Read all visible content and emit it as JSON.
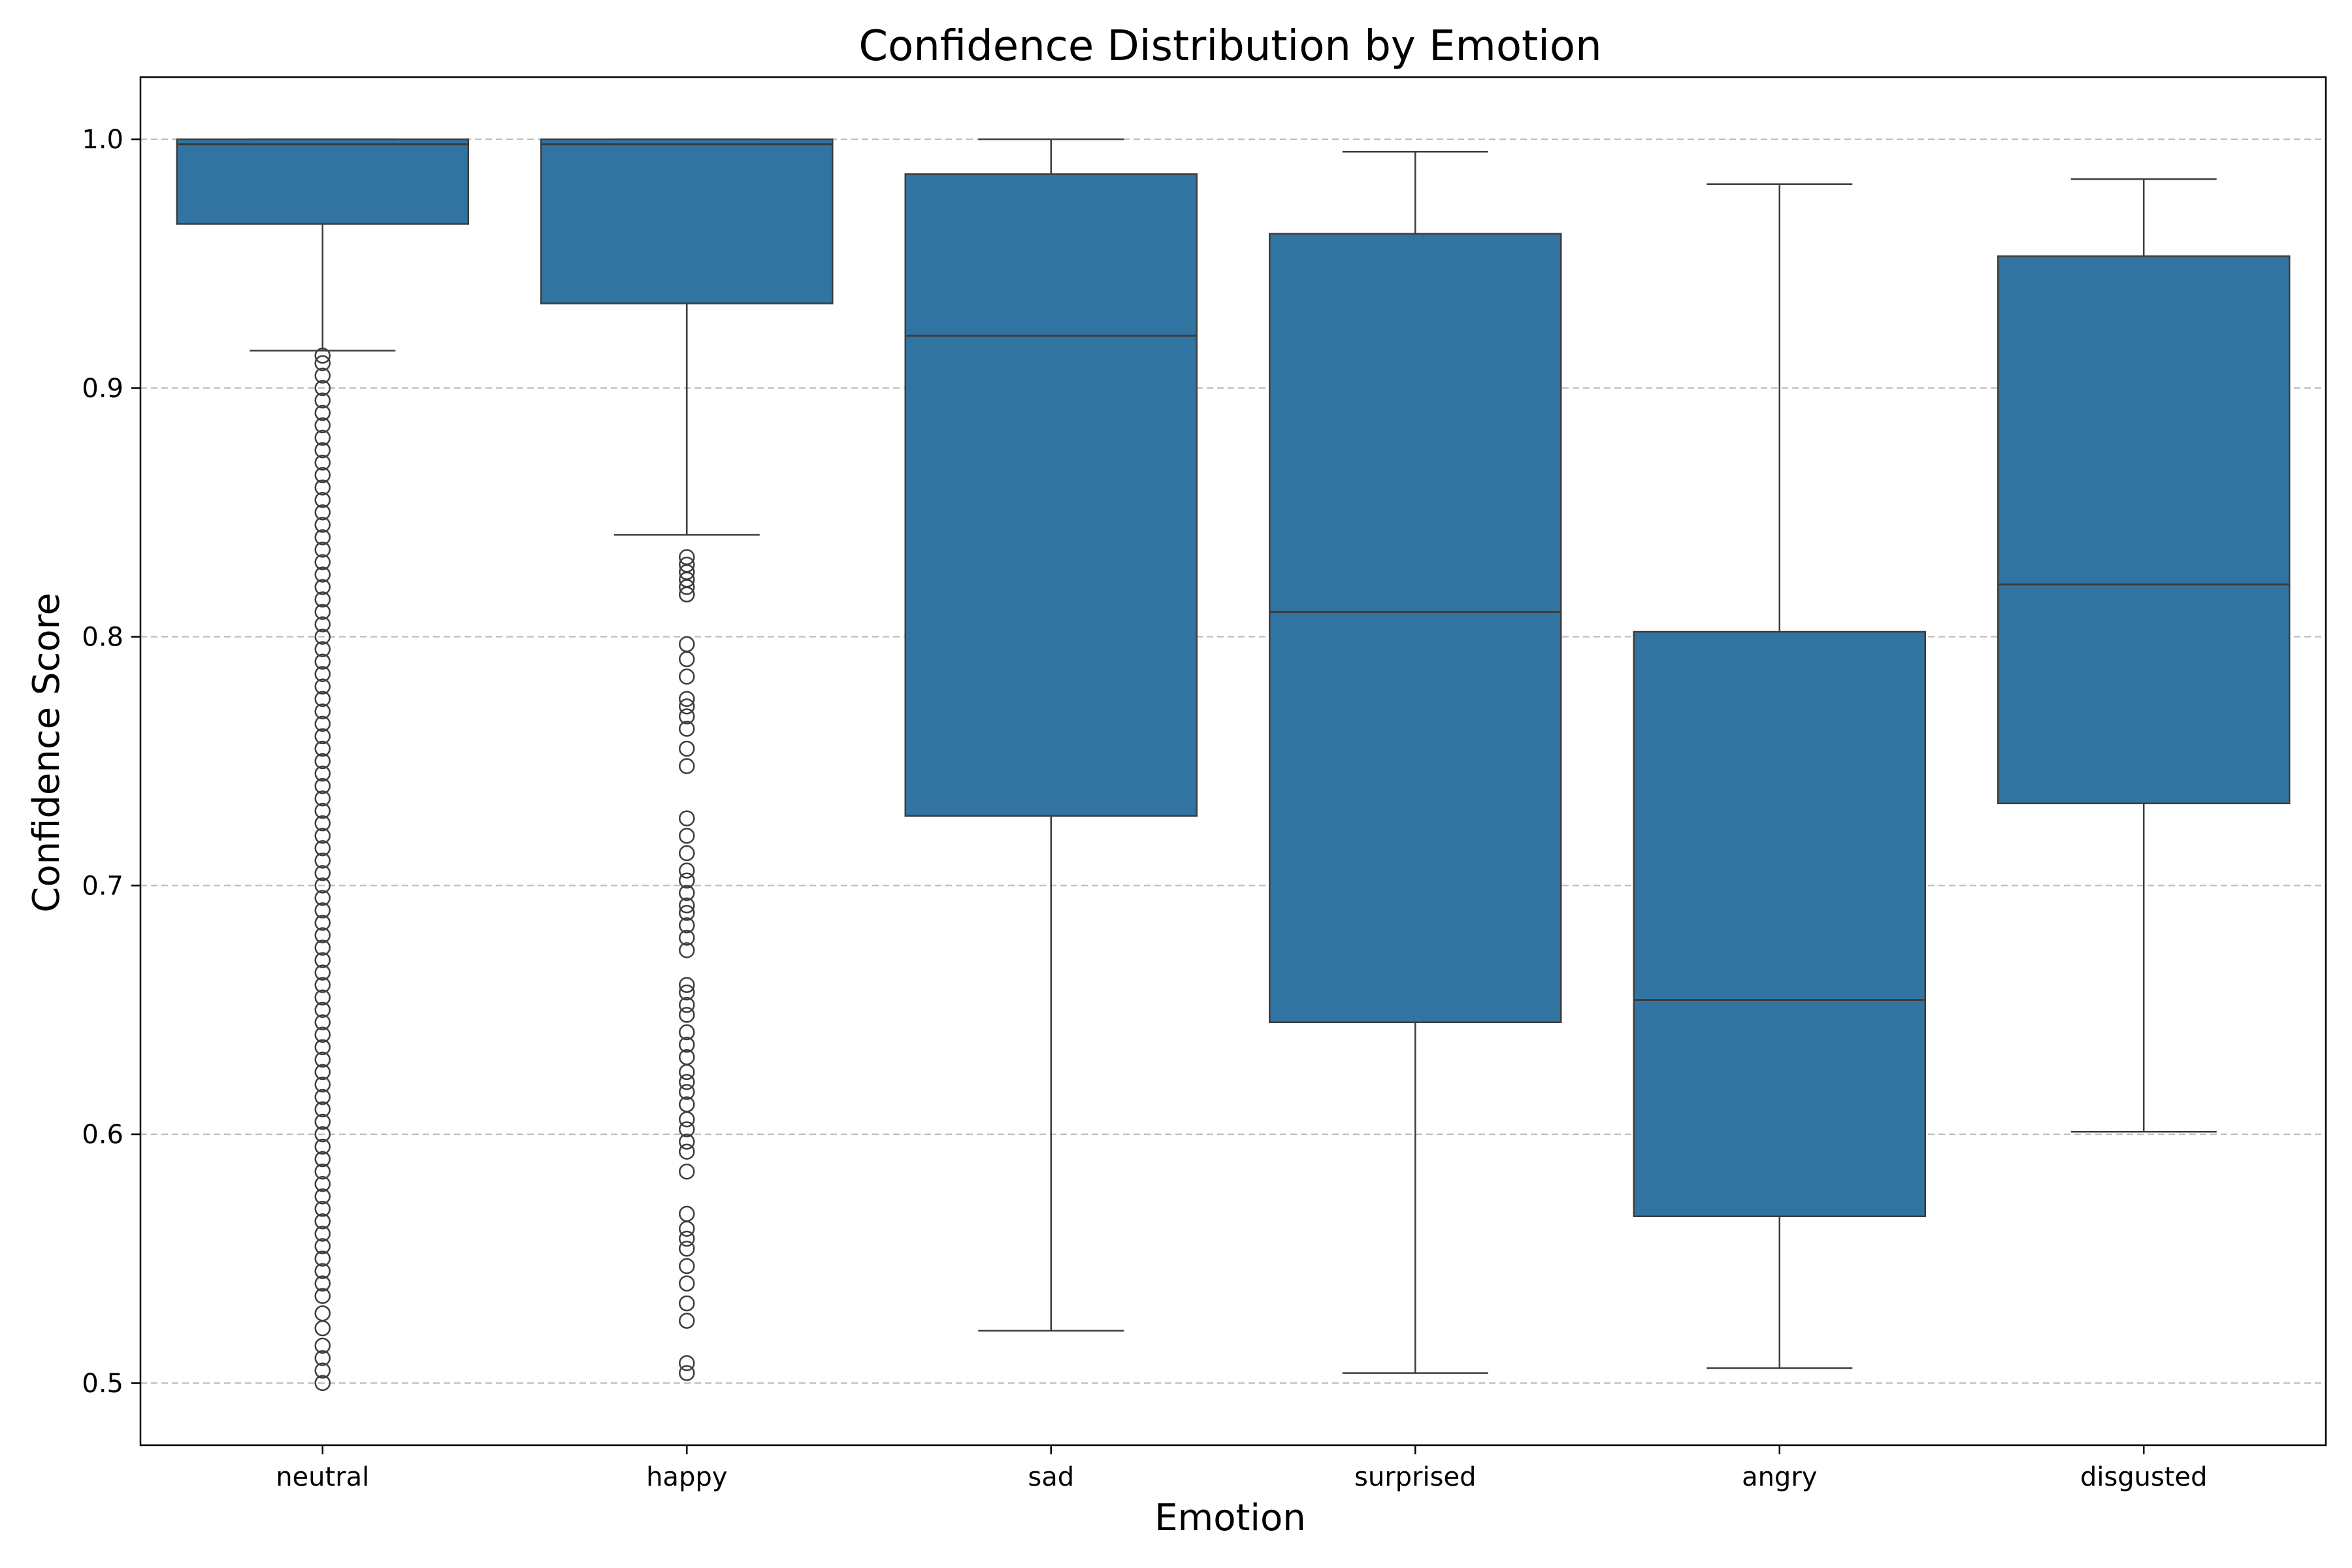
{
  "chart_data": {
    "type": "box",
    "title": "Confidence Distribution by Emotion",
    "xlabel": "Emotion",
    "ylabel": "Confidence Score",
    "ylim": [
      0.475,
      1.025
    ],
    "yticks": [
      "0.5",
      "0.6",
      "0.7",
      "0.8",
      "0.9",
      "1.0"
    ],
    "grid": "y-dashed",
    "colors": {
      "box": "#3274a1",
      "line": "#3d3d3d",
      "grid": "#bbbbbb"
    },
    "categories": [
      "neutral",
      "happy",
      "sad",
      "surprised",
      "angry",
      "disgusted"
    ],
    "boxes": [
      {
        "category": "neutral",
        "whisker_low": 0.915,
        "q1": 0.966,
        "median": 0.998,
        "q3": 1.0,
        "whisker_high": 1.0,
        "outliers": [
          0.913,
          0.91,
          0.905,
          0.9,
          0.895,
          0.89,
          0.885,
          0.88,
          0.875,
          0.87,
          0.865,
          0.86,
          0.855,
          0.85,
          0.845,
          0.84,
          0.835,
          0.83,
          0.825,
          0.82,
          0.815,
          0.81,
          0.805,
          0.8,
          0.795,
          0.79,
          0.785,
          0.78,
          0.775,
          0.77,
          0.765,
          0.76,
          0.755,
          0.75,
          0.745,
          0.74,
          0.735,
          0.73,
          0.725,
          0.72,
          0.715,
          0.71,
          0.705,
          0.7,
          0.695,
          0.69,
          0.685,
          0.68,
          0.675,
          0.67,
          0.665,
          0.66,
          0.655,
          0.65,
          0.645,
          0.64,
          0.635,
          0.63,
          0.625,
          0.62,
          0.615,
          0.61,
          0.605,
          0.6,
          0.595,
          0.59,
          0.585,
          0.58,
          0.575,
          0.57,
          0.565,
          0.56,
          0.555,
          0.55,
          0.545,
          0.54,
          0.535,
          0.528,
          0.522,
          0.515,
          0.51,
          0.505,
          0.5
        ]
      },
      {
        "category": "happy",
        "whisker_low": 0.841,
        "q1": 0.934,
        "median": 0.998,
        "q3": 1.0,
        "whisker_high": 1.0,
        "outliers": [
          0.832,
          0.829,
          0.826,
          0.823,
          0.82,
          0.817,
          0.797,
          0.791,
          0.784,
          0.775,
          0.772,
          0.768,
          0.763,
          0.755,
          0.748,
          0.727,
          0.72,
          0.713,
          0.706,
          0.702,
          0.697,
          0.692,
          0.689,
          0.684,
          0.679,
          0.674,
          0.66,
          0.657,
          0.652,
          0.648,
          0.641,
          0.636,
          0.631,
          0.625,
          0.621,
          0.617,
          0.612,
          0.606,
          0.602,
          0.597,
          0.593,
          0.585,
          0.568,
          0.562,
          0.558,
          0.554,
          0.547,
          0.54,
          0.532,
          0.525,
          0.508,
          0.504
        ]
      },
      {
        "category": "sad",
        "whisker_low": 0.521,
        "q1": 0.728,
        "median": 0.921,
        "q3": 0.986,
        "whisker_high": 1.0,
        "outliers": []
      },
      {
        "category": "surprised",
        "whisker_low": 0.504,
        "q1": 0.645,
        "median": 0.81,
        "q3": 0.962,
        "whisker_high": 0.995,
        "outliers": []
      },
      {
        "category": "angry",
        "whisker_low": 0.506,
        "q1": 0.567,
        "median": 0.654,
        "q3": 0.802,
        "whisker_high": 0.982,
        "outliers": []
      },
      {
        "category": "disgusted",
        "whisker_low": 0.601,
        "q1": 0.733,
        "median": 0.821,
        "q3": 0.953,
        "whisker_high": 0.984,
        "outliers": []
      }
    ]
  }
}
